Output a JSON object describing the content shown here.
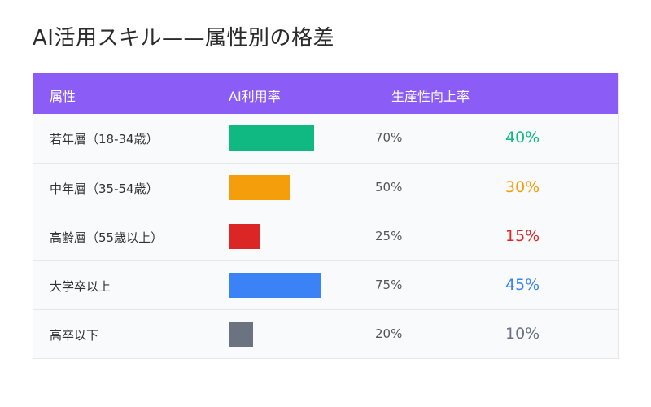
{
  "title": "AI活用スキル——属性別の格差",
  "headers": {
    "attribute": "属性",
    "ai_usage": "AI利用率",
    "productivity": "生産性向上率"
  },
  "chart_data": {
    "type": "table",
    "title": "AI活用スキル——属性別の格差",
    "columns": [
      "属性",
      "AI利用率",
      "生産性向上率"
    ],
    "rows": [
      {
        "label": "若年層（18-34歳）",
        "ai_usage": 70,
        "ai_usage_text": "70%",
        "productivity": 40,
        "productivity_text": "40%",
        "color": "#10b981"
      },
      {
        "label": "中年層（35-54歳）",
        "ai_usage": 50,
        "ai_usage_text": "50%",
        "productivity": 30,
        "productivity_text": "30%",
        "color": "#f59e0b"
      },
      {
        "label": "高齢層（55歳以上）",
        "ai_usage": 25,
        "ai_usage_text": "25%",
        "productivity": 15,
        "productivity_text": "15%",
        "color": "#dc2626"
      },
      {
        "label": "大学卒以上",
        "ai_usage": 75,
        "ai_usage_text": "75%",
        "productivity": 45,
        "productivity_text": "45%",
        "color": "#3b82f6"
      },
      {
        "label": "高卒以下",
        "ai_usage": 20,
        "ai_usage_text": "20%",
        "productivity": 10,
        "productivity_text": "10%",
        "color": "#6b7280"
      }
    ]
  }
}
